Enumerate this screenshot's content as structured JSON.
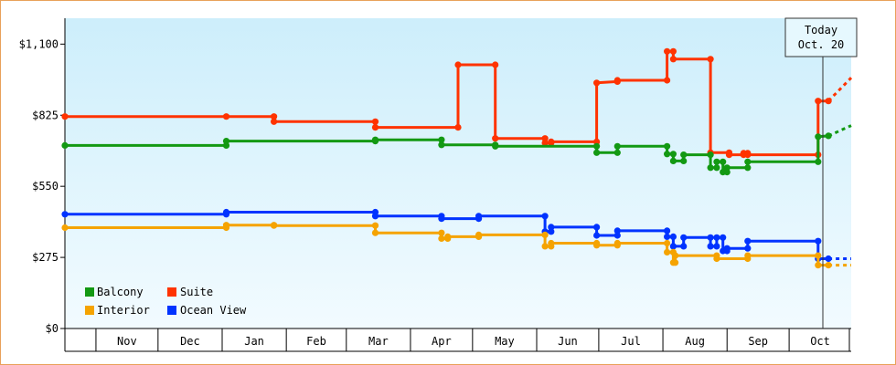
{
  "chart_data": {
    "type": "line",
    "y_axis": {
      "min": 0,
      "max": 1200,
      "ticks": [
        0,
        275,
        550,
        825,
        1100
      ],
      "tick_labels": [
        "$0",
        "$275",
        "$550",
        "$825",
        "$1,100"
      ]
    },
    "x_axis": {
      "start": "2023-10-17",
      "end": "2024-10-31",
      "month_labels": [
        "Nov",
        "Dec",
        "Jan",
        "Feb",
        "Mar",
        "Apr",
        "May",
        "Jun",
        "Jul",
        "Aug",
        "Sep",
        "Oct"
      ],
      "month_boundaries": [
        "2023-11-01",
        "2023-12-01",
        "2024-01-01",
        "2024-02-01",
        "2024-03-01",
        "2024-04-01",
        "2024-05-01",
        "2024-06-01",
        "2024-07-01",
        "2024-08-01",
        "2024-09-01",
        "2024-10-01",
        "2024-11-01"
      ]
    },
    "today": {
      "label_line1": "Today",
      "label_line2": "Oct. 20",
      "date": "2024-10-20"
    },
    "legend_placement": "bottom-left",
    "series": [
      {
        "name": "Suite",
        "color": "#ff3300",
        "points": [
          [
            "2023-10-17",
            820
          ],
          [
            "2024-01-03",
            820
          ],
          [
            "2024-01-26",
            820
          ],
          [
            "2024-01-26",
            800
          ],
          [
            "2024-03-15",
            800
          ],
          [
            "2024-03-15",
            778
          ],
          [
            "2024-04-24",
            778
          ],
          [
            "2024-04-24",
            1020
          ],
          [
            "2024-05-12",
            1020
          ],
          [
            "2024-05-12",
            735
          ],
          [
            "2024-06-05",
            735
          ],
          [
            "2024-06-05",
            718
          ],
          [
            "2024-06-08",
            718
          ],
          [
            "2024-06-08",
            722
          ],
          [
            "2024-06-30",
            722
          ],
          [
            "2024-06-30",
            950
          ],
          [
            "2024-07-10",
            955
          ],
          [
            "2024-07-10",
            960
          ],
          [
            "2024-08-03",
            960
          ],
          [
            "2024-08-03",
            1072
          ],
          [
            "2024-08-06",
            1072
          ],
          [
            "2024-08-06",
            1042
          ],
          [
            "2024-08-24",
            1042
          ],
          [
            "2024-08-24",
            680
          ],
          [
            "2024-09-02",
            680
          ],
          [
            "2024-09-02",
            672
          ],
          [
            "2024-09-09",
            672
          ],
          [
            "2024-09-09",
            678
          ],
          [
            "2024-09-11",
            678
          ],
          [
            "2024-09-11",
            672
          ],
          [
            "2024-10-15",
            672
          ],
          [
            "2024-10-15",
            880
          ],
          [
            "2024-10-20",
            880
          ]
        ],
        "forecast": [
          [
            "2024-10-20",
            880
          ],
          [
            "2024-10-31",
            970
          ]
        ]
      },
      {
        "name": "Balcony",
        "color": "#139913",
        "points": [
          [
            "2023-10-17",
            708
          ],
          [
            "2024-01-03",
            708
          ],
          [
            "2024-01-03",
            725
          ],
          [
            "2024-03-15",
            725
          ],
          [
            "2024-03-15",
            730
          ],
          [
            "2024-04-16",
            730
          ],
          [
            "2024-04-16",
            710
          ],
          [
            "2024-05-12",
            710
          ],
          [
            "2024-05-12",
            705
          ],
          [
            "2024-06-30",
            705
          ],
          [
            "2024-06-30",
            680
          ],
          [
            "2024-07-10",
            680
          ],
          [
            "2024-07-10",
            705
          ],
          [
            "2024-08-03",
            705
          ],
          [
            "2024-08-03",
            675
          ],
          [
            "2024-08-06",
            675
          ],
          [
            "2024-08-06",
            648
          ],
          [
            "2024-08-11",
            648
          ],
          [
            "2024-08-11",
            672
          ],
          [
            "2024-08-24",
            672
          ],
          [
            "2024-08-24",
            622
          ],
          [
            "2024-08-27",
            622
          ],
          [
            "2024-08-27",
            645
          ],
          [
            "2024-08-30",
            645
          ],
          [
            "2024-08-30",
            605
          ],
          [
            "2024-09-01",
            605
          ],
          [
            "2024-09-01",
            622
          ],
          [
            "2024-09-11",
            622
          ],
          [
            "2024-09-11",
            645
          ],
          [
            "2024-10-15",
            645
          ],
          [
            "2024-10-15",
            742
          ],
          [
            "2024-10-20",
            745
          ]
        ],
        "forecast": [
          [
            "2024-10-20",
            745
          ],
          [
            "2024-10-31",
            785
          ]
        ]
      },
      {
        "name": "Ocean View",
        "color": "#0033ff",
        "points": [
          [
            "2023-10-17",
            442
          ],
          [
            "2024-01-03",
            442
          ],
          [
            "2024-01-03",
            450
          ],
          [
            "2024-03-15",
            450
          ],
          [
            "2024-03-15",
            435
          ],
          [
            "2024-04-16",
            435
          ],
          [
            "2024-04-16",
            425
          ],
          [
            "2024-05-04",
            425
          ],
          [
            "2024-05-04",
            435
          ],
          [
            "2024-06-05",
            435
          ],
          [
            "2024-06-05",
            375
          ],
          [
            "2024-06-08",
            375
          ],
          [
            "2024-06-08",
            392
          ],
          [
            "2024-06-30",
            392
          ],
          [
            "2024-06-30",
            360
          ],
          [
            "2024-07-10",
            360
          ],
          [
            "2024-07-10",
            378
          ],
          [
            "2024-08-03",
            378
          ],
          [
            "2024-08-03",
            355
          ],
          [
            "2024-08-06",
            355
          ],
          [
            "2024-08-06",
            318
          ],
          [
            "2024-08-11",
            318
          ],
          [
            "2024-08-11",
            352
          ],
          [
            "2024-08-24",
            352
          ],
          [
            "2024-08-24",
            318
          ],
          [
            "2024-08-27",
            318
          ],
          [
            "2024-08-27",
            352
          ],
          [
            "2024-08-30",
            352
          ],
          [
            "2024-08-30",
            300
          ],
          [
            "2024-09-01",
            300
          ],
          [
            "2024-09-01",
            310
          ],
          [
            "2024-09-11",
            310
          ],
          [
            "2024-09-11",
            338
          ],
          [
            "2024-10-15",
            338
          ],
          [
            "2024-10-15",
            270
          ],
          [
            "2024-10-20",
            270
          ]
        ],
        "forecast": [
          [
            "2024-10-20",
            270
          ],
          [
            "2024-10-31",
            270
          ]
        ]
      },
      {
        "name": "Interior",
        "color": "#f5a300",
        "points": [
          [
            "2023-10-17",
            390
          ],
          [
            "2024-01-03",
            390
          ],
          [
            "2024-01-03",
            400
          ],
          [
            "2024-01-26",
            400
          ],
          [
            "2024-01-26",
            398
          ],
          [
            "2024-03-15",
            398
          ],
          [
            "2024-03-15",
            370
          ],
          [
            "2024-04-16",
            370
          ],
          [
            "2024-04-16",
            348
          ],
          [
            "2024-04-19",
            348
          ],
          [
            "2024-04-19",
            355
          ],
          [
            "2024-05-04",
            355
          ],
          [
            "2024-05-04",
            362
          ],
          [
            "2024-06-05",
            362
          ],
          [
            "2024-06-05",
            318
          ],
          [
            "2024-06-08",
            318
          ],
          [
            "2024-06-08",
            330
          ],
          [
            "2024-06-30",
            330
          ],
          [
            "2024-06-30",
            322
          ],
          [
            "2024-07-10",
            322
          ],
          [
            "2024-07-10",
            330
          ],
          [
            "2024-08-03",
            330
          ],
          [
            "2024-08-03",
            295
          ],
          [
            "2024-08-06",
            295
          ],
          [
            "2024-08-06",
            255
          ],
          [
            "2024-08-07",
            255
          ],
          [
            "2024-08-07",
            282
          ],
          [
            "2024-08-27",
            282
          ],
          [
            "2024-08-27",
            270
          ],
          [
            "2024-09-11",
            270
          ],
          [
            "2024-09-11",
            282
          ],
          [
            "2024-10-15",
            282
          ],
          [
            "2024-10-15",
            245
          ],
          [
            "2024-10-20",
            245
          ]
        ],
        "forecast": [
          [
            "2024-10-20",
            245
          ],
          [
            "2024-10-31",
            245
          ]
        ]
      }
    ],
    "legend": [
      "Balcony",
      "Suite",
      "Interior",
      "Ocean View"
    ]
  }
}
